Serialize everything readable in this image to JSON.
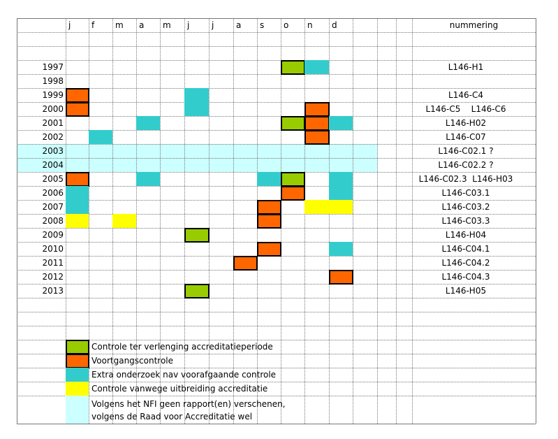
{
  "colors": {
    "green": "#99cc00",
    "orange": "#ff6600",
    "teal": "#33cccc",
    "yellow": "#ffff00",
    "lightcyan": "#ccffff"
  },
  "header": {
    "months": [
      "j",
      "f",
      "m",
      "a",
      "m",
      "j",
      "j",
      "a",
      "s",
      "o",
      "n",
      "d"
    ],
    "numbering_label": "nummering"
  },
  "rows": [
    {
      "year": "1997",
      "nummering": "L146-H1"
    },
    {
      "year": "1998",
      "nummering": ""
    },
    {
      "year": "1999",
      "nummering": "L146-C4"
    },
    {
      "year": "2000",
      "nummering": "L146-C5    L146-C6"
    },
    {
      "year": "2001",
      "nummering": "L146-H02"
    },
    {
      "year": "2002",
      "nummering": "L146-C07"
    },
    {
      "year": "2003",
      "nummering": "L146-C02.1 ?"
    },
    {
      "year": "2004",
      "nummering": "L146-C02.2 ?"
    },
    {
      "year": "2005",
      "nummering": "L146-C02.3  L146-H03"
    },
    {
      "year": "2006",
      "nummering": "L146-C03.1"
    },
    {
      "year": "2007",
      "nummering": "L146-C03.2"
    },
    {
      "year": "2008",
      "nummering": "L146-C03.3"
    },
    {
      "year": "2009",
      "nummering": "L146-H04"
    },
    {
      "year": "2010",
      "nummering": "L146-C04.1"
    },
    {
      "year": "2011",
      "nummering": "L146-C04.2"
    },
    {
      "year": "2012",
      "nummering": "L146-C04.3"
    },
    {
      "year": "2013",
      "nummering": "L146-H05"
    }
  ],
  "marks": [
    {
      "year": "1997",
      "month": 10,
      "type": "green"
    },
    {
      "year": "1997",
      "month": 11,
      "type": "teal"
    },
    {
      "year": "1999",
      "month": 1,
      "type": "orange"
    },
    {
      "year": "1999",
      "month": 6,
      "type": "teal"
    },
    {
      "year": "2000",
      "month": 1,
      "type": "orange"
    },
    {
      "year": "2000",
      "month": 6,
      "type": "teal"
    },
    {
      "year": "2000",
      "month": 11,
      "type": "orange"
    },
    {
      "year": "2001",
      "month": 4,
      "type": "teal"
    },
    {
      "year": "2001",
      "month": 10,
      "type": "green"
    },
    {
      "year": "2001",
      "month": 11,
      "type": "orange"
    },
    {
      "year": "2001",
      "month": 12,
      "type": "teal"
    },
    {
      "year": "2002",
      "month": 2,
      "type": "teal"
    },
    {
      "year": "2002",
      "month": 11,
      "type": "orange"
    },
    {
      "year": "2005",
      "month": 1,
      "type": "orange"
    },
    {
      "year": "2005",
      "month": 4,
      "type": "teal"
    },
    {
      "year": "2005",
      "month": 9,
      "type": "teal"
    },
    {
      "year": "2005",
      "month": 10,
      "type": "green"
    },
    {
      "year": "2005",
      "month": 12,
      "type": "teal"
    },
    {
      "year": "2006",
      "month": 1,
      "type": "teal"
    },
    {
      "year": "2006",
      "month": 10,
      "type": "orange"
    },
    {
      "year": "2006",
      "month": 12,
      "type": "teal"
    },
    {
      "year": "2007",
      "month": 1,
      "type": "teal"
    },
    {
      "year": "2007",
      "month": 9,
      "type": "orange"
    },
    {
      "year": "2007",
      "month": 11,
      "type": "yellow"
    },
    {
      "year": "2007",
      "month": 12,
      "type": "yellow"
    },
    {
      "year": "2008",
      "month": 1,
      "type": "yellow"
    },
    {
      "year": "2008",
      "month": 3,
      "type": "yellow"
    },
    {
      "year": "2008",
      "month": 9,
      "type": "orange"
    },
    {
      "year": "2009",
      "month": 6,
      "type": "green"
    },
    {
      "year": "2010",
      "month": 9,
      "type": "orange"
    },
    {
      "year": "2010",
      "month": 12,
      "type": "teal"
    },
    {
      "year": "2011",
      "month": 8,
      "type": "orange"
    },
    {
      "year": "2012",
      "month": 12,
      "type": "orange"
    },
    {
      "year": "2013",
      "month": 6,
      "type": "green"
    }
  ],
  "legend": [
    {
      "type": "green",
      "text": "Controle ter verlenging accreditatieperiode"
    },
    {
      "type": "orange",
      "text": "Voortgangscontrole"
    },
    {
      "type": "teal",
      "text": "Extra onderzoek nav voorafgaande controle"
    },
    {
      "type": "yellow",
      "text": "Controle vanwege uitbreiding accreditatie"
    },
    {
      "type": "lightcyan",
      "text": "Volgens het NFI geen rapport(en) verschenen,\nvolgens de Raad voor Accreditatie wel"
    }
  ]
}
